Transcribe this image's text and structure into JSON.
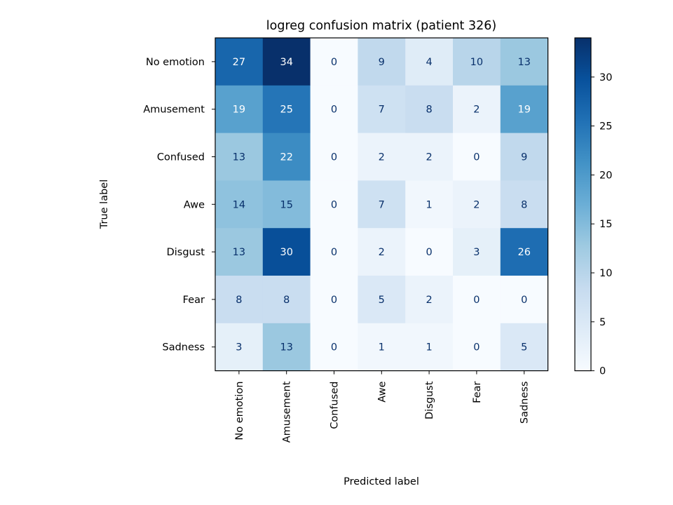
{
  "chart_data": {
    "type": "heatmap",
    "title": "logreg confusion matrix (patient 326)",
    "xlabel": "Predicted label",
    "ylabel": "True label",
    "x_categories": [
      "No emotion",
      "Amusement",
      "Confused",
      "Awe",
      "Disgust",
      "Fear",
      "Sadness"
    ],
    "y_categories": [
      "No emotion",
      "Amusement",
      "Confused",
      "Awe",
      "Disgust",
      "Fear",
      "Sadness"
    ],
    "values": [
      [
        27,
        34,
        0,
        9,
        4,
        10,
        13
      ],
      [
        19,
        25,
        0,
        7,
        8,
        2,
        19
      ],
      [
        13,
        22,
        0,
        2,
        2,
        0,
        9
      ],
      [
        14,
        15,
        0,
        7,
        1,
        2,
        8
      ],
      [
        13,
        30,
        0,
        2,
        0,
        3,
        26
      ],
      [
        8,
        8,
        0,
        5,
        2,
        0,
        0
      ],
      [
        3,
        13,
        0,
        1,
        1,
        0,
        5
      ]
    ],
    "colormap": "Blues",
    "vmin": 0,
    "vmax": 34,
    "colorbar": {
      "ticks": [
        0,
        5,
        10,
        15,
        20,
        25,
        30
      ]
    },
    "text_color_light": "#ffffff",
    "text_color_dark": "#08306b"
  }
}
